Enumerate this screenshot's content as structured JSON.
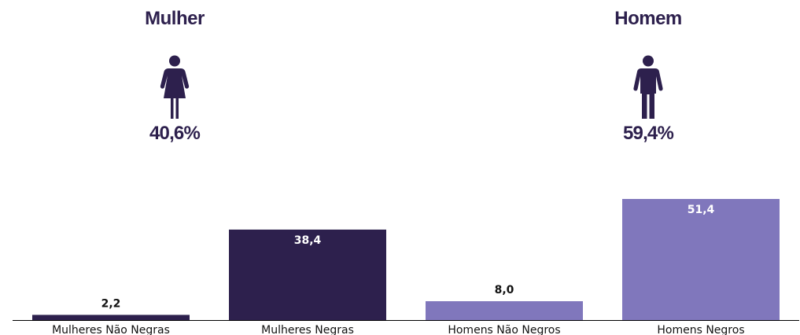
{
  "colors": {
    "dark": "#2d204d",
    "light": "#8077bc",
    "text": "#111111"
  },
  "genders": [
    {
      "title": "Mulher",
      "percent": "40,6%",
      "icon": "woman-icon"
    },
    {
      "title": "Homem",
      "percent": "59,4%",
      "icon": "man-icon"
    }
  ],
  "chart_data": {
    "type": "bar",
    "categories": [
      "Mulheres Não Negras",
      "Mulheres Negras",
      "Homens Não Negros",
      "Homens Negros"
    ],
    "values": [
      2.2,
      38.4,
      8.0,
      51.4
    ],
    "value_labels": [
      "2,2",
      "38,4",
      "8,0",
      "51,4"
    ],
    "bar_colors": [
      "#2d204d",
      "#2d204d",
      "#8077bc",
      "#8077bc"
    ],
    "ylim": [
      0,
      51.4
    ],
    "grid": false,
    "y_axis_visible": false
  }
}
